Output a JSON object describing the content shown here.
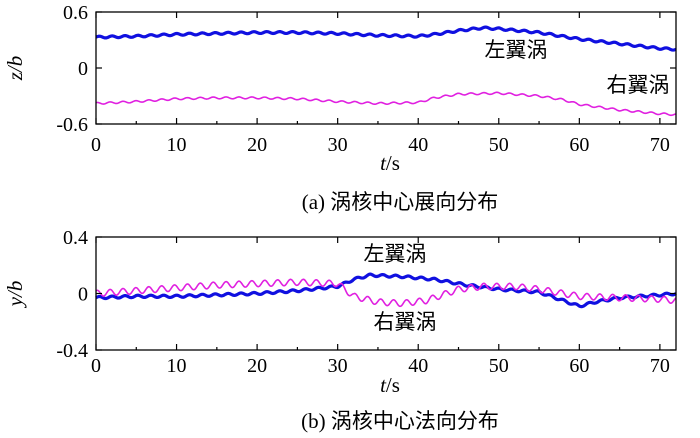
{
  "colors": {
    "left": "#1010e0",
    "right": "#e020e0",
    "axis": "#000000"
  },
  "chart_data": [
    {
      "type": "line",
      "caption": "(a) 涡核中心展向分布",
      "ylabel": "z/b",
      "xlabel": "t/s",
      "xlim": [
        0,
        72
      ],
      "ylim": [
        -0.6,
        0.6
      ],
      "xticks": [
        0,
        10,
        20,
        30,
        40,
        50,
        60,
        70
      ],
      "yticks": [
        {
          "v": 0.6,
          "label": "0.6"
        },
        {
          "v": 0,
          "label": "0"
        },
        {
          "v": -0.6,
          "label": "-0.6"
        }
      ],
      "annotations": [
        {
          "text": "左翼涡",
          "series": "left"
        },
        {
          "text": "右翼涡",
          "series": "right"
        }
      ],
      "series": [
        {
          "name": "左翼涡",
          "key": "left",
          "x": [
            0,
            5,
            10,
            15,
            20,
            25,
            30,
            35,
            40,
            42,
            45,
            48,
            50,
            55,
            60,
            65,
            70,
            72
          ],
          "values": [
            0.33,
            0.34,
            0.36,
            0.37,
            0.38,
            0.38,
            0.37,
            0.35,
            0.34,
            0.36,
            0.4,
            0.43,
            0.42,
            0.38,
            0.31,
            0.26,
            0.21,
            0.2
          ]
        },
        {
          "name": "右翼涡",
          "key": "right",
          "x": [
            0,
            5,
            10,
            15,
            20,
            25,
            30,
            35,
            40,
            42,
            45,
            50,
            55,
            58,
            60,
            65,
            70,
            72
          ],
          "values": [
            -0.38,
            -0.36,
            -0.33,
            -0.32,
            -0.32,
            -0.33,
            -0.36,
            -0.38,
            -0.37,
            -0.32,
            -0.28,
            -0.27,
            -0.3,
            -0.34,
            -0.39,
            -0.45,
            -0.49,
            -0.5
          ]
        }
      ]
    },
    {
      "type": "line",
      "caption": "(b) 涡核中心法向分布",
      "ylabel": "y/b",
      "xlabel": "t/s",
      "xlim": [
        0,
        72
      ],
      "ylim": [
        -0.4,
        0.4
      ],
      "xticks": [
        0,
        10,
        20,
        30,
        40,
        50,
        60,
        70
      ],
      "yticks": [
        {
          "v": 0.4,
          "label": "0.4"
        },
        {
          "v": 0,
          "label": "0"
        },
        {
          "v": -0.4,
          "label": "-0.4"
        }
      ],
      "annotations": [
        {
          "text": "左翼涡",
          "series": "left"
        },
        {
          "text": "右翼涡",
          "series": "right"
        }
      ],
      "series": [
        {
          "name": "左翼涡",
          "key": "left",
          "x": [
            0,
            5,
            10,
            15,
            20,
            25,
            30,
            32,
            34,
            38,
            42,
            46,
            50,
            55,
            58,
            60,
            62,
            65,
            70,
            72
          ],
          "values": [
            -0.03,
            -0.02,
            -0.02,
            -0.01,
            0.0,
            0.02,
            0.05,
            0.1,
            0.13,
            0.12,
            0.1,
            0.06,
            0.03,
            0.01,
            -0.05,
            -0.09,
            -0.06,
            -0.03,
            -0.01,
            0.0
          ],
          "ripple": 0.008
        },
        {
          "name": "右翼涡",
          "key": "right",
          "x": [
            0,
            5,
            10,
            15,
            20,
            25,
            30,
            32,
            35,
            38,
            41,
            45,
            48,
            52,
            55,
            58,
            60,
            65,
            70,
            72
          ],
          "values": [
            0.0,
            0.02,
            0.04,
            0.06,
            0.07,
            0.08,
            0.07,
            -0.02,
            -0.06,
            -0.07,
            -0.05,
            0.03,
            0.05,
            0.05,
            0.03,
            0.0,
            -0.02,
            -0.03,
            -0.04,
            -0.05
          ],
          "ripple": 0.022
        }
      ]
    }
  ]
}
